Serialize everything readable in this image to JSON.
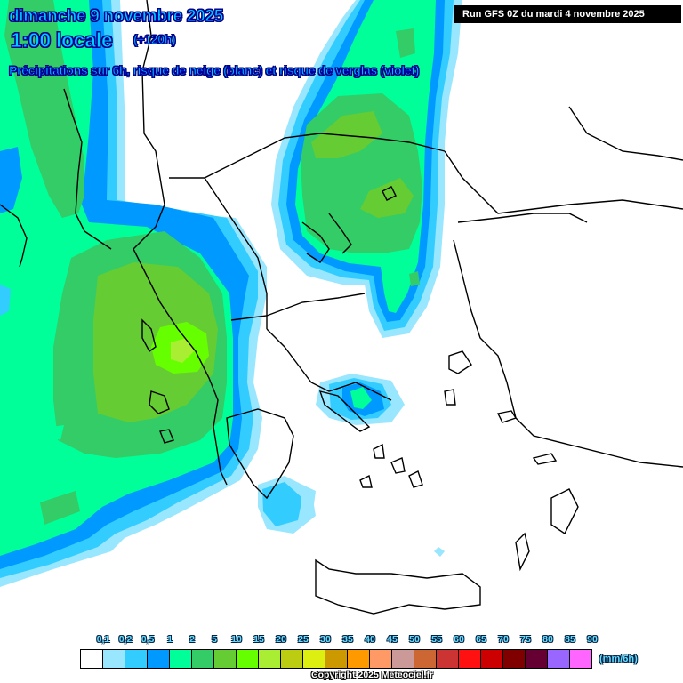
{
  "header": {
    "date": "dimanche 9 novembre 2025",
    "local_time": "1:00 locale",
    "lead_time": "(+120h)",
    "subtitle": "Précipitations sur 6h, risque de neige (blanc) et risque de verglas (violet)",
    "run_info": "Run GFS 0Z du mardi 4 novembre 2025"
  },
  "legend": {
    "unit": "(mm/6h)",
    "ticks": [
      "0,1",
      "0,2",
      "0,5",
      "1",
      "2",
      "5",
      "10",
      "15",
      "20",
      "25",
      "30",
      "35",
      "40",
      "45",
      "50",
      "55",
      "60",
      "65",
      "70",
      "75",
      "80",
      "85",
      "90"
    ],
    "colors": [
      "#ffffff",
      "#99e6ff",
      "#33ccff",
      "#0099ff",
      "#00ff99",
      "#33cc66",
      "#66cc33",
      "#66ff00",
      "#aaee33",
      "#bbcc11",
      "#ddee11",
      "#cc9900",
      "#ff9900",
      "#ff9966",
      "#cc9999",
      "#cc6633",
      "#cc3333",
      "#ff1111",
      "#cc0000",
      "#800000",
      "#660033",
      "#9966ff",
      "#ff66ff"
    ]
  },
  "footer": {
    "copyright": "Copyright 2025 Meteociel.fr"
  },
  "map": {
    "region": "Balkans / Greece / Aegean",
    "precip_colors": {
      "p01": "#99e6ff",
      "p02": "#33ccff",
      "p05": "#0099ff",
      "p1": "#00ff99",
      "p2": "#33cc66",
      "p5": "#66cc33",
      "p10": "#66ff00",
      "p15": "#aaee33"
    }
  }
}
